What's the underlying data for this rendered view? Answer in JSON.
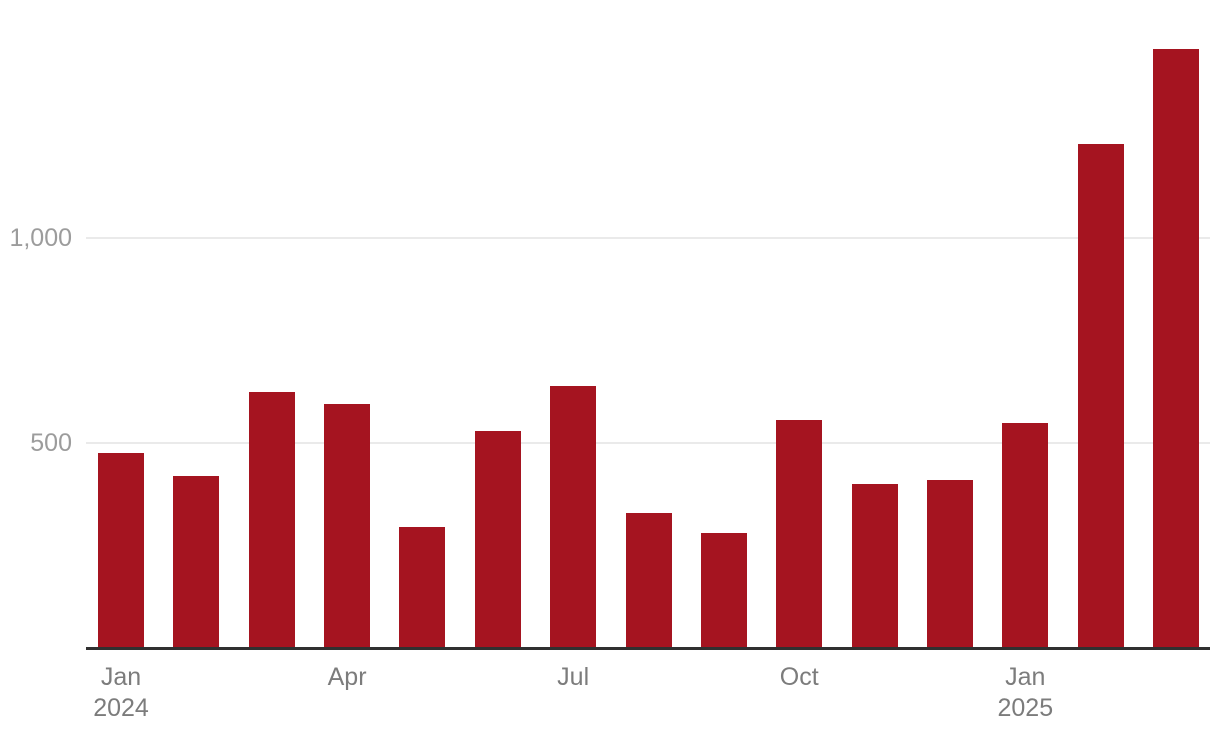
{
  "colors": {
    "bar": "#a51420",
    "axis_line": "#303030",
    "gridline": "#eaeaea",
    "y_tick_label": "#9c9c9c",
    "x_tick_label": "#7c7c7c",
    "background": "#ffffff"
  },
  "chart_data": {
    "type": "bar",
    "title": "",
    "xlabel": "",
    "ylabel": "",
    "categories": [
      "Jan 2024",
      "Feb 2024",
      "Mar 2024",
      "Apr 2024",
      "May 2024",
      "Jun 2024",
      "Jul 2024",
      "Aug 2024",
      "Sep 2024",
      "Oct 2024",
      "Nov 2024",
      "Dec 2024",
      "Jan 2025",
      "Feb 2025",
      "Mar 2025"
    ],
    "values": [
      475,
      420,
      625,
      595,
      295,
      530,
      640,
      330,
      280,
      555,
      400,
      410,
      550,
      1230,
      1460
    ],
    "ylim": [
      0,
      1580
    ],
    "grid": "horizontal-only",
    "legend": "none",
    "y_ticks": [
      {
        "value": 500,
        "label": "500"
      },
      {
        "value": 1000,
        "label": "1,000"
      }
    ],
    "x_ticks": [
      {
        "bar_index": 0,
        "lines": [
          "Jan",
          "2024"
        ]
      },
      {
        "bar_index": 3,
        "lines": [
          "Apr"
        ]
      },
      {
        "bar_index": 6,
        "lines": [
          "Jul"
        ]
      },
      {
        "bar_index": 9,
        "lines": [
          "Oct"
        ]
      },
      {
        "bar_index": 12,
        "lines": [
          "Jan",
          "2025"
        ]
      }
    ]
  }
}
